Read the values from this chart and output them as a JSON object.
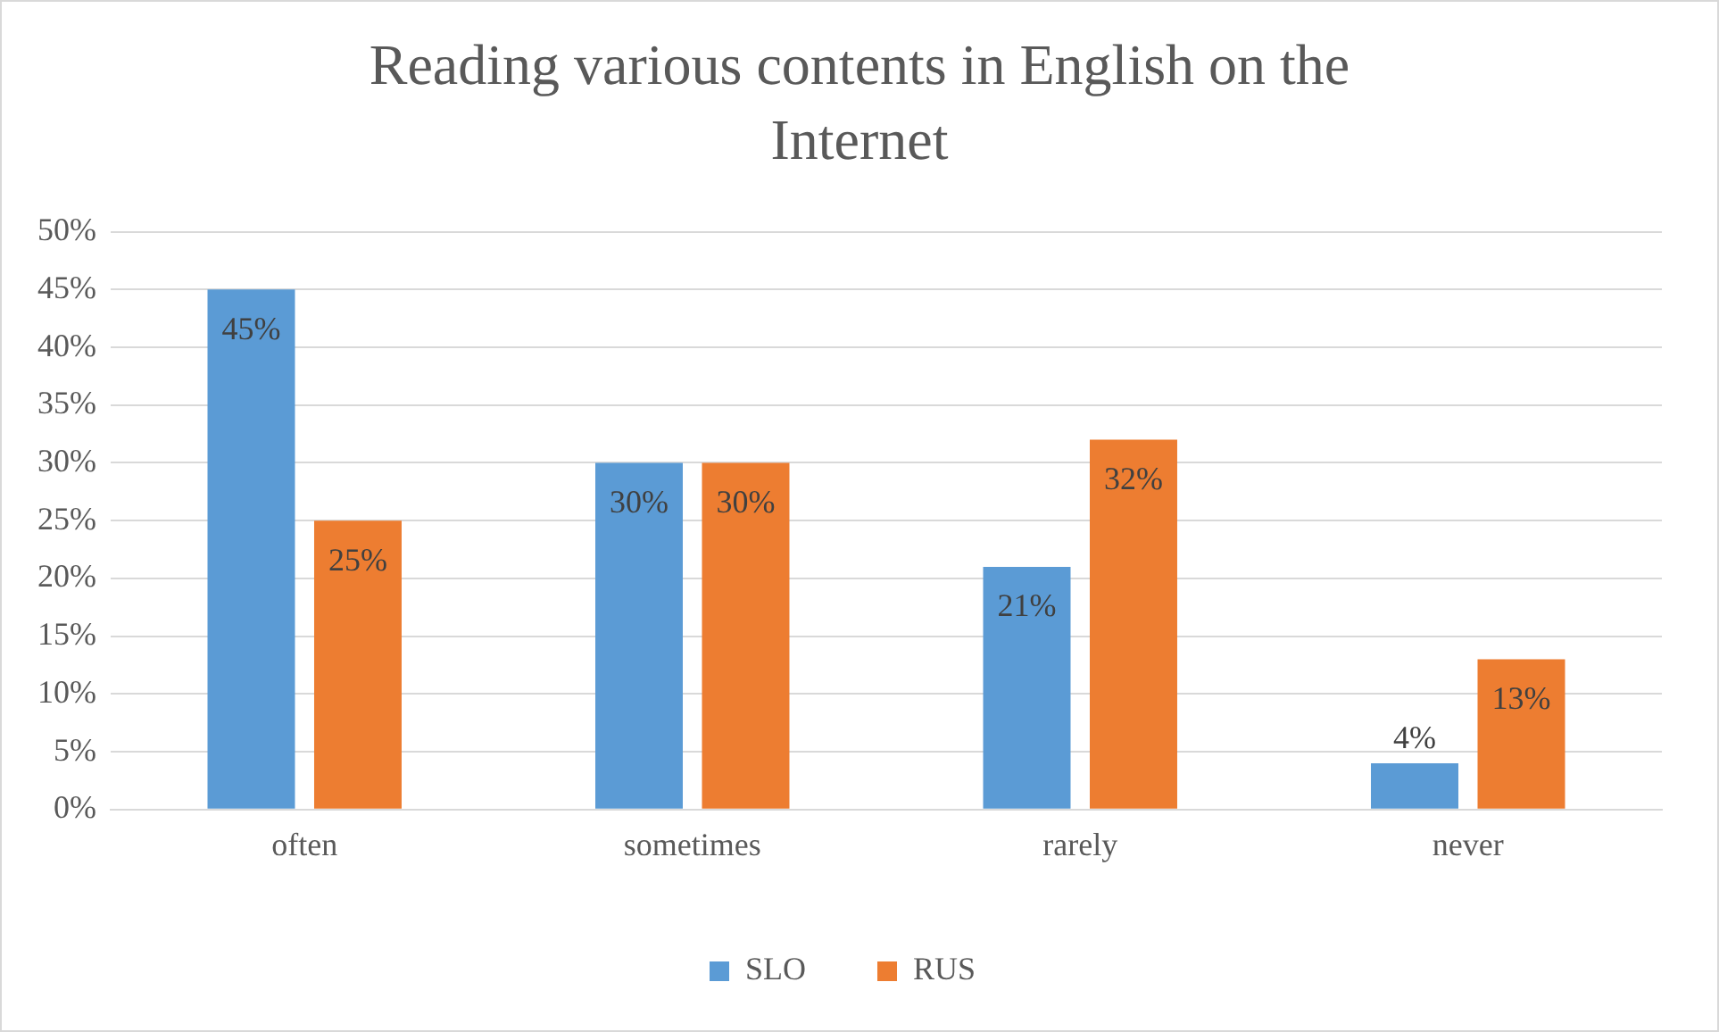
{
  "chart_data": {
    "type": "bar",
    "title": "Reading various contents in English on the Internet",
    "categories": [
      "often",
      "sometimes",
      "rarely",
      "never"
    ],
    "series": [
      {
        "name": "SLO",
        "color": "#5b9bd5",
        "values": [
          45,
          30,
          21,
          4
        ],
        "value_labels": [
          "45%",
          "30%",
          "21%",
          "4%"
        ]
      },
      {
        "name": "RUS",
        "color": "#ed7d31",
        "values": [
          25,
          30,
          32,
          13
        ],
        "value_labels": [
          "25%",
          "30%",
          "32%",
          "13%"
        ]
      }
    ],
    "ylim": [
      0,
      50
    ],
    "yticks": [
      {
        "value": 0,
        "label": "0%"
      },
      {
        "value": 5,
        "label": "5%"
      },
      {
        "value": 10,
        "label": "10%"
      },
      {
        "value": 15,
        "label": "15%"
      },
      {
        "value": 20,
        "label": "20%"
      },
      {
        "value": 25,
        "label": "25%"
      },
      {
        "value": 30,
        "label": "30%"
      },
      {
        "value": 35,
        "label": "35%"
      },
      {
        "value": 40,
        "label": "40%"
      },
      {
        "value": 45,
        "label": "45%"
      },
      {
        "value": 50,
        "label": "50%"
      }
    ],
    "grid": "y",
    "legend": "bottom"
  }
}
